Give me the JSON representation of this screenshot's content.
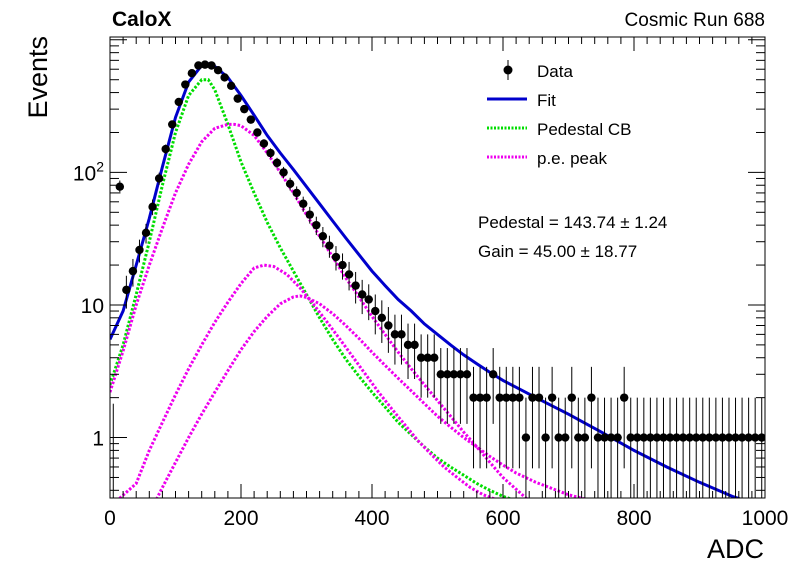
{
  "header": {
    "left_label": "CaloX",
    "right_label": "Cosmic Run 688"
  },
  "legend": {
    "data": "Data",
    "fit": "Fit",
    "pedestal": "Pedestal CB",
    "pe": "p.e. peak"
  },
  "fit_results": {
    "pedestal": "Pedestal = 143.74 ± 1.24",
    "gain": "Gain = 45.00 ± 18.77"
  },
  "colors": {
    "data": "#000000",
    "fit": "#0000cc",
    "pedestal": "#00dd00",
    "pe": "#ee00ee"
  },
  "chart_data": {
    "type": "scatter",
    "xlabel": "ADC",
    "ylabel": "Events",
    "xlim": [
      0,
      1000
    ],
    "ylim": [
      0.35,
      1050
    ],
    "ylog": true,
    "x_ticks": [
      0,
      200,
      400,
      600,
      800,
      1000
    ],
    "y_ticks": [
      {
        "value": 1,
        "label": "1"
      },
      {
        "value": 10,
        "label": "10"
      },
      {
        "value": 100,
        "label": "10^2"
      }
    ],
    "legend_position": "top-right",
    "series": [
      {
        "name": "Data",
        "kind": "points",
        "x": [
          5,
          15,
          25,
          35,
          45,
          55,
          65,
          75,
          85,
          95,
          105,
          115,
          125,
          135,
          145,
          155,
          165,
          175,
          185,
          195,
          205,
          215,
          225,
          235,
          245,
          255,
          265,
          275,
          285,
          295,
          305,
          315,
          325,
          335,
          345,
          355,
          365,
          375,
          385,
          395,
          405,
          415,
          425,
          435,
          445,
          455,
          465,
          475,
          485,
          495,
          505,
          515,
          525,
          535,
          545,
          555,
          565,
          575,
          585,
          595,
          605,
          615,
          625,
          635,
          645,
          655,
          665,
          675,
          685,
          695,
          705,
          715,
          725,
          735,
          745,
          755,
          765,
          775,
          785,
          795,
          805,
          815,
          825,
          835,
          845,
          855,
          865,
          875,
          885,
          895,
          905,
          915,
          925,
          935,
          945,
          955,
          965,
          975,
          985,
          995
        ],
        "y": [
          0,
          78,
          13,
          18,
          26,
          35,
          55,
          90,
          150,
          230,
          340,
          460,
          560,
          640,
          650,
          640,
          590,
          520,
          450,
          360,
          300,
          250,
          200,
          165,
          140,
          118,
          100,
          82,
          70,
          58,
          48,
          40,
          33,
          28,
          23,
          20,
          17,
          14,
          12,
          11,
          9,
          8,
          7,
          6,
          6,
          5,
          5,
          4,
          4,
          4,
          3,
          3,
          3,
          3,
          3,
          2,
          2,
          2,
          3,
          2,
          2,
          2,
          2,
          1,
          2,
          2,
          1,
          2,
          1,
          1,
          2,
          1,
          1,
          2,
          1,
          1,
          1,
          1,
          2,
          1,
          1,
          1,
          1,
          1,
          1,
          1,
          1,
          1,
          1,
          1,
          1,
          1,
          1,
          1,
          1,
          1,
          1,
          1,
          1,
          1
        ]
      },
      {
        "name": "Fit",
        "kind": "line",
        "x": [
          0,
          20,
          40,
          60,
          80,
          100,
          120,
          140,
          150,
          160,
          180,
          200,
          220,
          240,
          260,
          280,
          300,
          320,
          340,
          360,
          380,
          400,
          420,
          440,
          460,
          480,
          500,
          520,
          540,
          560,
          580,
          600,
          650,
          700,
          750,
          800,
          850,
          900,
          950,
          1000
        ],
        "y": [
          5.5,
          9,
          20,
          45,
          110,
          260,
          480,
          640,
          660,
          630,
          520,
          380,
          270,
          190,
          140,
          105,
          78,
          58,
          43,
          32,
          24,
          18,
          14,
          11,
          9,
          7.2,
          6,
          5,
          4.2,
          3.6,
          3.1,
          2.7,
          2.0,
          1.5,
          1.1,
          0.8,
          0.6,
          0.46,
          0.36,
          0.3
        ]
      },
      {
        "name": "Pedestal CB",
        "kind": "line",
        "x": [
          0,
          20,
          40,
          60,
          80,
          100,
          120,
          140,
          150,
          160,
          180,
          200,
          220,
          240,
          260,
          280,
          300,
          320,
          340,
          360,
          380,
          400,
          420,
          440,
          460,
          480,
          500,
          520,
          540,
          560,
          580,
          600,
          650
        ],
        "y": [
          2.5,
          5,
          12,
          30,
          80,
          200,
          380,
          500,
          500,
          420,
          230,
          120,
          70,
          42,
          27,
          18,
          12,
          8,
          5.5,
          3.9,
          2.9,
          2.2,
          1.7,
          1.3,
          1.05,
          0.85,
          0.7,
          0.6,
          0.52,
          0.45,
          0.4,
          0.36,
          0.3
        ]
      },
      {
        "name": "p.e. peak",
        "kind": "line",
        "x": [
          0,
          20,
          40,
          60,
          80,
          100,
          120,
          140,
          160,
          180,
          190,
          200,
          220,
          240,
          260,
          280,
          300,
          320,
          340,
          360,
          380,
          400,
          420,
          440,
          460,
          480,
          500,
          520,
          540,
          560,
          580,
          600,
          650
        ],
        "y": [
          2.2,
          4.5,
          10,
          20,
          38,
          70,
          115,
          170,
          215,
          230,
          230,
          225,
          190,
          140,
          100,
          70,
          48,
          33,
          23,
          16,
          11.5,
          8.2,
          6,
          4.4,
          3.3,
          2.5,
          1.9,
          1.45,
          1.1,
          0.85,
          0.65,
          0.5,
          0.3
        ]
      },
      {
        "name": "p.e. peak",
        "kind": "line",
        "x": [
          0,
          40,
          60,
          80,
          100,
          120,
          140,
          160,
          180,
          200,
          220,
          235,
          250,
          270,
          290,
          310,
          330,
          350,
          370,
          390,
          410,
          430,
          450,
          470,
          490,
          510,
          530,
          550,
          570,
          590,
          610,
          640
        ],
        "y": [
          0.3,
          0.45,
          0.8,
          1.3,
          2.1,
          3.3,
          5,
          7.4,
          10.5,
          14.5,
          19,
          20,
          19.5,
          17,
          13.5,
          10.2,
          7.6,
          5.6,
          4.1,
          3,
          2.2,
          1.65,
          1.25,
          0.95,
          0.75,
          0.6,
          0.5,
          0.42,
          0.37,
          0.34,
          0.32,
          0.3
        ]
      },
      {
        "name": "p.e. peak",
        "kind": "line",
        "x": [
          65,
          80,
          100,
          120,
          140,
          160,
          180,
          200,
          220,
          240,
          260,
          280,
          290,
          300,
          320,
          340,
          360,
          380,
          400,
          420,
          440,
          460,
          480,
          500,
          520,
          540,
          560,
          580,
          600,
          620,
          650,
          700,
          750,
          800
        ],
        "y": [
          0.3,
          0.42,
          0.65,
          1.0,
          1.5,
          2.2,
          3.2,
          4.6,
          6.3,
          8.2,
          10.2,
          11.5,
          11.7,
          11.4,
          10.2,
          8.6,
          7,
          5.6,
          4.4,
          3.5,
          2.8,
          2.25,
          1.8,
          1.45,
          1.2,
          1.0,
          0.85,
          0.72,
          0.62,
          0.54,
          0.46,
          0.37,
          0.32,
          0.3
        ]
      }
    ]
  }
}
